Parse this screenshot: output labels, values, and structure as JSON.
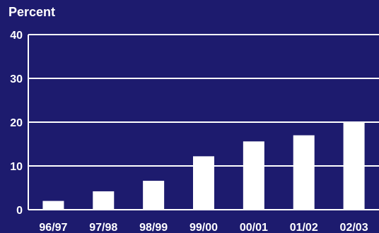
{
  "colors": {
    "background": "#1d1b6e",
    "bars": "#ffffff",
    "grid": "#ffffff",
    "text": "#ffffff"
  },
  "chart_data": {
    "type": "bar",
    "ylabel": "Percent",
    "xlabel": "",
    "categories": [
      "96/97",
      "97/98",
      "98/99",
      "99/00",
      "00/01",
      "01/02",
      "02/03"
    ],
    "values": [
      2,
      4.2,
      6.6,
      12.2,
      15.6,
      17,
      19.9
    ],
    "ylim": [
      0,
      40
    ],
    "yticks": [
      0,
      10,
      20,
      30,
      40
    ],
    "grid": true
  }
}
